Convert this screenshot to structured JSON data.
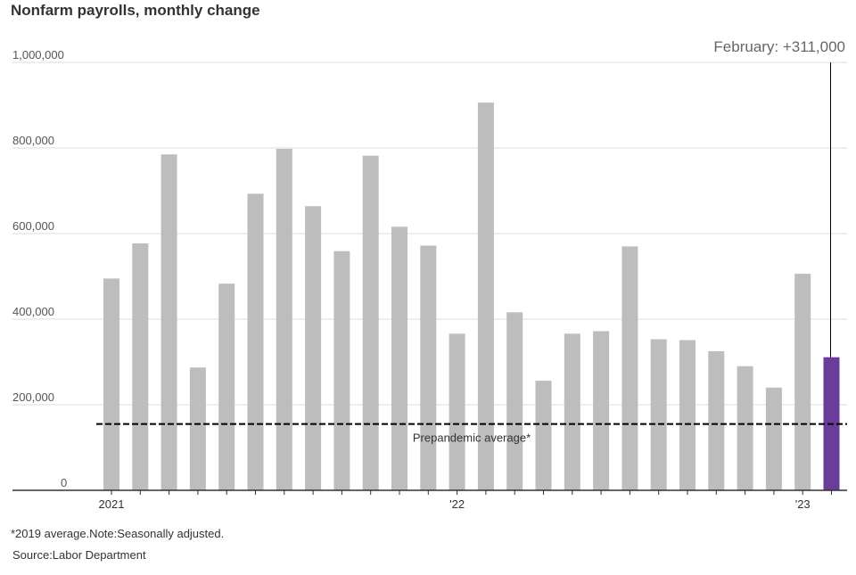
{
  "chart_data": {
    "type": "bar",
    "title": "Nonfarm payrolls, monthly change",
    "xlabel": "",
    "ylabel": "",
    "ylim": [
      0,
      1000000
    ],
    "yticks": [
      {
        "value": 0,
        "label": "0"
      },
      {
        "value": 200000,
        "label": "200,000"
      },
      {
        "value": 400000,
        "label": "400,000"
      },
      {
        "value": 600000,
        "label": "600,000"
      },
      {
        "value": 800000,
        "label": "800,000"
      },
      {
        "value": 1000000,
        "label": "1,000,000"
      }
    ],
    "grid": true,
    "categories": [
      "2021-01",
      "2021-02",
      "2021-03",
      "2021-04",
      "2021-05",
      "2021-06",
      "2021-07",
      "2021-08",
      "2021-09",
      "2021-10",
      "2021-11",
      "2021-12",
      "2022-01",
      "2022-02",
      "2022-03",
      "2022-04",
      "2022-05",
      "2022-06",
      "2022-07",
      "2022-08",
      "2022-09",
      "2022-10",
      "2022-11",
      "2022-12",
      "2023-01",
      "2023-02"
    ],
    "values": [
      495000,
      577000,
      785000,
      287000,
      483000,
      693000,
      798000,
      664000,
      559000,
      782000,
      616000,
      572000,
      366000,
      906000,
      416000,
      256000,
      366000,
      372000,
      570000,
      353000,
      351000,
      325000,
      290000,
      240000,
      506000,
      311000
    ],
    "xtick_labels": [
      {
        "index": 0,
        "label": "2021"
      },
      {
        "index": 12,
        "label": "'22"
      },
      {
        "index": 24,
        "label": "'23"
      }
    ],
    "reference_line": {
      "value": 155000,
      "label": "Prepandemic average*"
    },
    "highlight": {
      "index": 25,
      "label": "February: +311,000"
    },
    "colors": {
      "bar": "#bdbdbd",
      "highlight": "#6a3d9a",
      "reference": "#000000",
      "grid": "#dddddd"
    }
  },
  "notes": {
    "footnote": "*2019 average.Note:Seasonally adjusted.",
    "source": "Source:Labor Department"
  }
}
